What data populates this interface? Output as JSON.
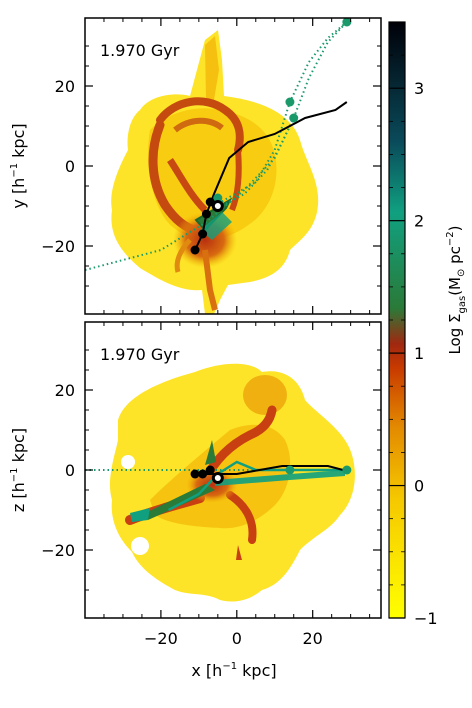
{
  "figure": {
    "panels": [
      {
        "id": "top",
        "label": "1.970 Gyr",
        "ylabel_main": "y [h",
        "ylabel_sup": "−1",
        "ylabel_tail": " kpc]"
      },
      {
        "id": "bottom",
        "label": "1.970 Gyr",
        "ylabel_main": "z [h",
        "ylabel_sup": "−1",
        "ylabel_tail": " kpc]"
      }
    ],
    "xlabel_main": "x [h",
    "xlabel_sup": "−1",
    "xlabel_tail": " kpc]",
    "colorbar": {
      "label_prefix": "Log Σ",
      "label_sub": "gas",
      "label_suffix": "(M",
      "label_sun": "⊙",
      "label_tail": " pc",
      "label_sup": "−2",
      "label_close": ")",
      "ticks": [
        "3",
        "2",
        "1",
        "0",
        "−1"
      ],
      "range": [
        -1,
        3.5
      ],
      "colors": [
        "#ffff00",
        "#f5c000",
        "#e08000",
        "#c02000",
        "#a02010",
        "#208040",
        "#10a080",
        "#000010"
      ]
    }
  },
  "chart_data": [
    {
      "type": "map",
      "panel": "top",
      "xlim": [
        -40,
        38
      ],
      "ylim": [
        -37,
        37
      ],
      "yticks": [
        "20",
        "0",
        "−20"
      ],
      "ytick_values": [
        20,
        0,
        -20
      ],
      "xtick_values": [
        -20,
        0,
        20
      ],
      "trajectories": {
        "black_solid": [
          [
            -11,
            -21
          ],
          [
            -9,
            -17
          ],
          [
            -8,
            -12
          ],
          [
            -6,
            -7
          ],
          [
            -2,
            2
          ],
          [
            3,
            6
          ],
          [
            10,
            8
          ],
          [
            18,
            12
          ],
          [
            26,
            14
          ],
          [
            29,
            16
          ]
        ],
        "green_dotted_a": [
          [
            -40,
            -26
          ],
          [
            -20,
            -21
          ],
          [
            -8,
            -14
          ],
          [
            2,
            -6
          ],
          [
            10,
            2
          ],
          [
            15,
            12
          ],
          [
            19,
            22
          ],
          [
            24,
            31
          ],
          [
            29,
            36
          ]
        ],
        "green_dotted_b": [
          [
            -6,
            -10
          ],
          [
            5,
            -4
          ],
          [
            10,
            4
          ],
          [
            14,
            16
          ],
          [
            19,
            26
          ],
          [
            24,
            32
          ],
          [
            29,
            36
          ]
        ],
        "green_dotted_c": [
          [
            -6,
            -11
          ],
          [
            2,
            -7
          ],
          [
            8,
            -1
          ],
          [
            12,
            6
          ],
          [
            15,
            12
          ]
        ],
        "black_points": [
          [
            -11,
            -21
          ],
          [
            -9,
            -17
          ],
          [
            -8,
            -12
          ],
          [
            -7,
            -9
          ]
        ],
        "green_points": [
          [
            29,
            36
          ],
          [
            14,
            16
          ],
          [
            15,
            12
          ],
          [
            -5,
            -8
          ]
        ],
        "center": [
          -5,
          -10
        ]
      }
    },
    {
      "type": "map",
      "panel": "bottom",
      "xlim": [
        -40,
        38
      ],
      "ylim": [
        -37,
        37
      ],
      "yticks": [
        "20",
        "0",
        "−20"
      ],
      "ytick_values": [
        20,
        0,
        -20
      ],
      "xticks": [
        "−20",
        "0",
        "20"
      ],
      "xtick_values": [
        -20,
        0,
        20
      ],
      "trajectories": {
        "black_solid": [
          [
            -11,
            -1
          ],
          [
            -8,
            -1
          ],
          [
            -5,
            -1
          ],
          [
            0,
            -1
          ],
          [
            6,
            0
          ],
          [
            12,
            1
          ],
          [
            18,
            1
          ],
          [
            24,
            1
          ],
          [
            28,
            0
          ]
        ],
        "green_dotted_a": [
          [
            -40,
            0
          ],
          [
            -20,
            0
          ],
          [
            -5,
            0
          ],
          [
            10,
            0
          ],
          [
            20,
            0
          ],
          [
            29,
            0
          ]
        ],
        "green_solid": [
          [
            -18,
            -10
          ],
          [
            -10,
            -6
          ],
          [
            -5,
            -1
          ],
          [
            0,
            2
          ],
          [
            5,
            0
          ],
          [
            14,
            0
          ],
          [
            22,
            0
          ],
          [
            29,
            0
          ]
        ],
        "black_points": [
          [
            -11,
            -1
          ],
          [
            -9,
            -1
          ],
          [
            -7,
            0
          ]
        ],
        "green_points": [
          [
            29,
            0
          ],
          [
            14,
            0
          ]
        ],
        "center": [
          -5,
          -2
        ]
      }
    }
  ]
}
